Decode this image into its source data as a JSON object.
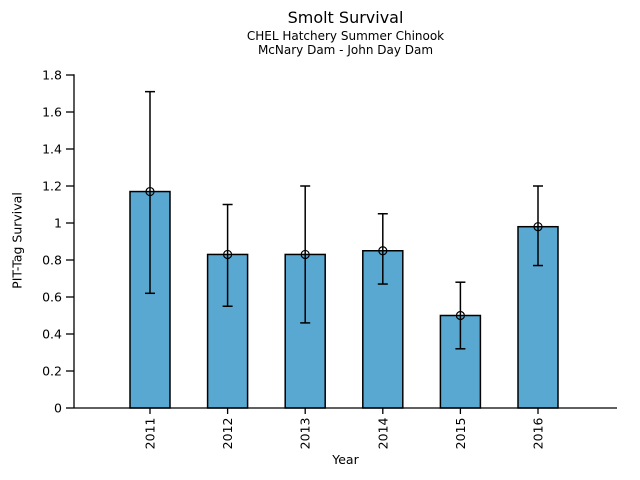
{
  "chart_data": {
    "type": "bar",
    "title": "Smolt Survival",
    "subtitle1": "CHEL Hatchery Summer Chinook",
    "subtitle2": "McNary Dam - John Day Dam",
    "xlabel": "Year",
    "ylabel": "PIT-Tag Survival",
    "categories": [
      "2011",
      "2012",
      "2013",
      "2014",
      "2015",
      "2016"
    ],
    "values": [
      1.17,
      0.83,
      0.83,
      0.85,
      0.5,
      0.98
    ],
    "error_low": [
      0.62,
      0.55,
      0.46,
      0.67,
      0.32,
      0.77
    ],
    "error_high": [
      1.71,
      1.1,
      1.2,
      1.05,
      0.68,
      1.2
    ],
    "ylim": [
      0,
      1.8
    ],
    "ytick_labels": [
      "0",
      "0.2",
      "0.4",
      "0.6",
      "0.8",
      "1",
      "1.2",
      "1.4",
      "1.6",
      "1.8"
    ],
    "grid": false,
    "legend": null,
    "bar_color": "#58a8d2",
    "bar_edge_color": "#000000",
    "error_bar_color": "#000000",
    "axis_color": "#000000",
    "marker": "open-circle"
  }
}
